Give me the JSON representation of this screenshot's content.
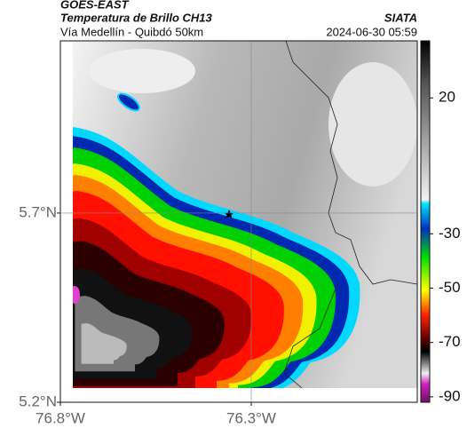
{
  "header": {
    "source": "GOES-EAST",
    "title": "Temperatura de Brillo CH13",
    "org": "SIATA",
    "subtitle": "Vía Medellín - Quibdó 50km",
    "datetime": "2024-06-30 05:59"
  },
  "map": {
    "xlim": [
      -76.8,
      -75.865
    ],
    "ylim": [
      5.2,
      6.155
    ],
    "xticks": [
      {
        "value": -76.8,
        "label": "76.8°W"
      },
      {
        "value": -76.3,
        "label": "76.3°W"
      }
    ],
    "yticks": [
      {
        "value": 5.2,
        "label": "5.2°N"
      },
      {
        "value": 5.7,
        "label": "5.7°N"
      }
    ],
    "grid": true
  },
  "colorbar": {
    "clim": [
      -92,
      41
    ],
    "ticks": [
      20,
      -30,
      -50,
      -70,
      -90
    ]
  }
}
